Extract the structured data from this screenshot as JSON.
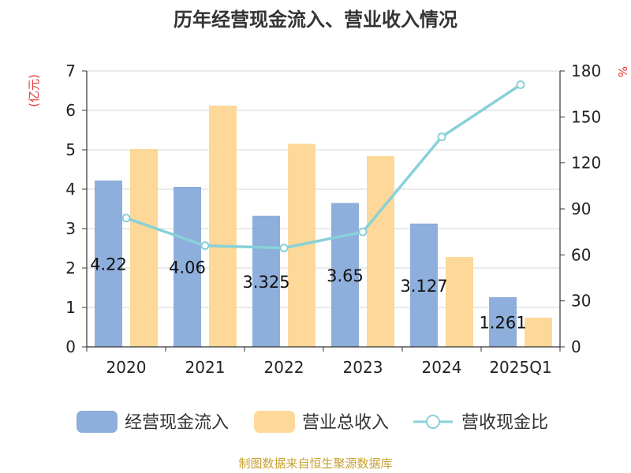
{
  "chart_data": {
    "type": "bar",
    "title": "历年经营现金流入、营业收入情况",
    "categories": [
      "2020",
      "2021",
      "2022",
      "2023",
      "2024",
      "2025Q1"
    ],
    "series": [
      {
        "name": "经营现金流入",
        "type": "bar",
        "axis": "left",
        "color": "#8eaedb",
        "values": [
          4.22,
          4.06,
          3.325,
          3.65,
          3.127,
          1.261
        ],
        "labels": [
          "4.22",
          "4.06",
          "3.325",
          "3.65",
          "3.127",
          "1.261"
        ]
      },
      {
        "name": "营业总收入",
        "type": "bar",
        "axis": "left",
        "color": "#fdd899",
        "values": [
          5.02,
          6.12,
          5.15,
          4.84,
          2.28,
          0.74
        ]
      },
      {
        "name": "营收现金比",
        "type": "line",
        "axis": "right",
        "color": "#88d1d8",
        "values": [
          84,
          66,
          64.5,
          75,
          137,
          171
        ]
      }
    ],
    "y_left": {
      "unit": "(亿元)",
      "ylim": [
        0,
        7
      ],
      "ticks": [
        0,
        1,
        2,
        3,
        4,
        5,
        6,
        7
      ]
    },
    "y_right": {
      "unit": "%",
      "ylim": [
        0,
        180
      ],
      "ticks": [
        0,
        30,
        60,
        90,
        120,
        150,
        180
      ]
    },
    "grid": true,
    "legend_position": "bottom",
    "source": "制图数据来自恒生聚源数据库"
  }
}
